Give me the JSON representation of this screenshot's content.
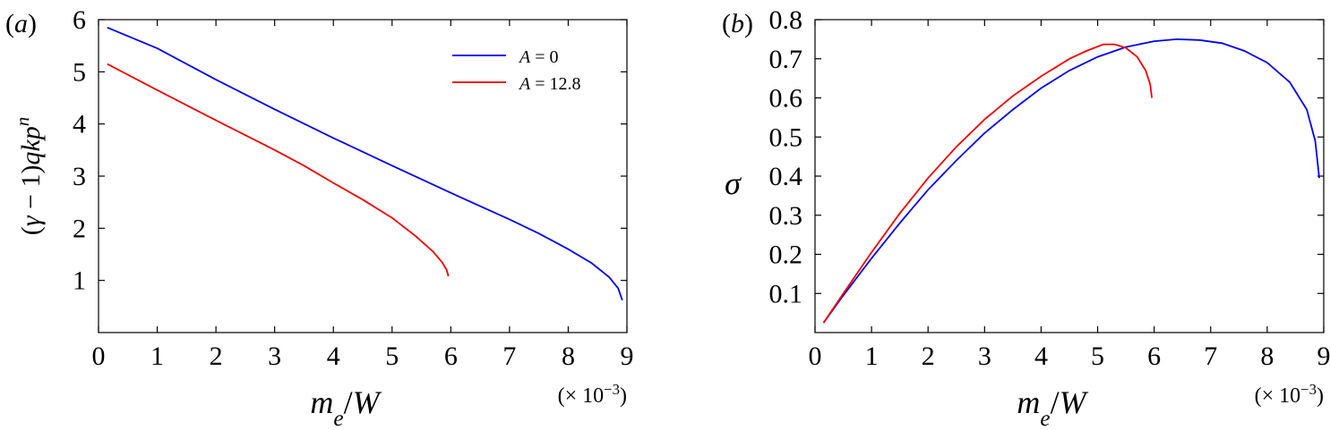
{
  "chart_data": [
    {
      "type": "line",
      "panel_label": "(a)",
      "xlabel": "m_e/W",
      "ylabel": "(γ − 1)qkp^n",
      "x_multiplier": "(× 10^−3)",
      "xlim": [
        0,
        9
      ],
      "ylim": [
        0,
        6
      ],
      "xticks": [
        "0",
        "1",
        "2",
        "3",
        "4",
        "5",
        "6",
        "7",
        "8",
        "9"
      ],
      "yticks": [
        "1",
        "2",
        "3",
        "4",
        "5",
        "6"
      ],
      "legend": "top-right",
      "series": [
        {
          "name": "A = 0",
          "color": "#0000ee",
          "x": [
            0.15,
            1,
            2,
            3,
            4,
            5,
            6,
            7,
            7.5,
            8,
            8.4,
            8.7,
            8.85,
            8.92
          ],
          "y": [
            5.85,
            5.45,
            4.85,
            4.28,
            3.73,
            3.2,
            2.68,
            2.17,
            1.9,
            1.6,
            1.33,
            1.06,
            0.85,
            0.62
          ]
        },
        {
          "name": "A = 12.8",
          "color": "#ee0000",
          "x": [
            0.15,
            1,
            2,
            3,
            3.5,
            4,
            4.5,
            5,
            5.4,
            5.7,
            5.85,
            5.93,
            5.96
          ],
          "y": [
            5.15,
            4.65,
            4.07,
            3.5,
            3.2,
            2.87,
            2.55,
            2.2,
            1.85,
            1.55,
            1.35,
            1.2,
            1.08
          ]
        }
      ]
    },
    {
      "type": "line",
      "panel_label": "(b)",
      "xlabel": "m_e/W",
      "ylabel": "σ",
      "x_multiplier": "(× 10^−3)",
      "xlim": [
        0,
        9
      ],
      "ylim": [
        0,
        0.8
      ],
      "xticks": [
        "0",
        "1",
        "2",
        "3",
        "4",
        "5",
        "6",
        "7",
        "8",
        "9"
      ],
      "yticks": [
        "0.1",
        "0.2",
        "0.3",
        "0.4",
        "0.5",
        "0.6",
        "0.7",
        "0.8"
      ],
      "series": [
        {
          "name": "A = 0",
          "color": "#0000ee",
          "x": [
            0.15,
            0.5,
            1,
            1.5,
            2,
            2.5,
            3,
            3.5,
            4,
            4.5,
            5,
            5.5,
            6,
            6.4,
            6.8,
            7.2,
            7.6,
            8,
            8.4,
            8.7,
            8.85,
            8.92
          ],
          "y": [
            0.025,
            0.095,
            0.19,
            0.28,
            0.365,
            0.44,
            0.51,
            0.57,
            0.625,
            0.67,
            0.705,
            0.73,
            0.745,
            0.75,
            0.748,
            0.74,
            0.72,
            0.69,
            0.64,
            0.57,
            0.49,
            0.395
          ]
        },
        {
          "name": "A = 12.8",
          "color": "#ee0000",
          "x": [
            0.15,
            0.5,
            1,
            1.5,
            2,
            2.5,
            3,
            3.5,
            4,
            4.5,
            4.8,
            5.1,
            5.3,
            5.5,
            5.7,
            5.85,
            5.93,
            5.96
          ],
          "y": [
            0.025,
            0.1,
            0.205,
            0.305,
            0.395,
            0.475,
            0.545,
            0.605,
            0.655,
            0.7,
            0.72,
            0.737,
            0.737,
            0.728,
            0.705,
            0.67,
            0.635,
            0.6
          ]
        }
      ]
    }
  ]
}
